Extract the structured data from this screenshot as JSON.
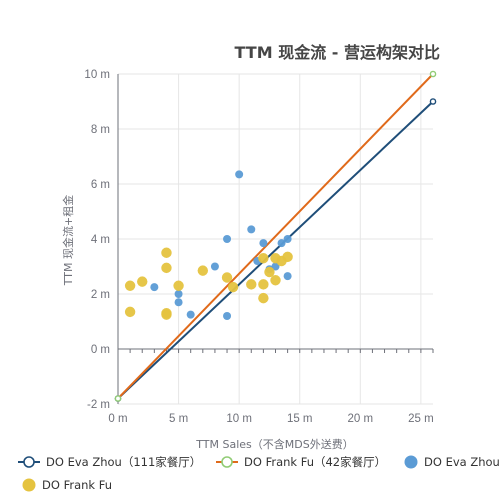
{
  "chart_data": {
    "type": "scatter",
    "title": "TTM 现金流 - 营运构架对比",
    "xlabel": "TTM Sales（不含MDS外送费）",
    "ylabel": "TTM 现金流+租金",
    "xlim": [
      0,
      26
    ],
    "ylim": [
      -2,
      10
    ],
    "x_ticks": [
      "0 m",
      "5 m",
      "10 m",
      "15 m",
      "20 m",
      "25 m"
    ],
    "y_ticks": [
      "-2 m",
      "0 m",
      "2 m",
      "4 m",
      "6 m",
      "8 m",
      "10 m"
    ],
    "x_tick_values": [
      0,
      5,
      10,
      15,
      20,
      25
    ],
    "y_tick_values": [
      -2,
      0,
      2,
      4,
      6,
      8,
      10
    ],
    "grid": true,
    "legend_position": "bottom",
    "series": [
      {
        "name": "DO Eva Zhou（111家餐厅）",
        "kind": "line",
        "color": "#1f4e79",
        "points": [
          [
            0,
            -1.8
          ],
          [
            26,
            9.0
          ]
        ]
      },
      {
        "name": "DO Frank Fu（42家餐厅）",
        "kind": "line",
        "color": "#e06a1b",
        "marker_color": "#91cc75",
        "points": [
          [
            0,
            -1.8
          ],
          [
            26,
            10.0
          ]
        ]
      },
      {
        "name": "DO Eva Zhou",
        "kind": "scatter",
        "color": "#5b9bd5",
        "points": [
          [
            3,
            2.25
          ],
          [
            5,
            2.0
          ],
          [
            5,
            1.7
          ],
          [
            6,
            1.25
          ],
          [
            8,
            3.0
          ],
          [
            9,
            4.0
          ],
          [
            9,
            1.2
          ],
          [
            10,
            6.35
          ],
          [
            11,
            4.35
          ],
          [
            11.5,
            3.2
          ],
          [
            12,
            3.85
          ],
          [
            12.5,
            2.9
          ],
          [
            13,
            3.0
          ],
          [
            13.5,
            3.85
          ],
          [
            14,
            4.0
          ],
          [
            14,
            2.65
          ]
        ]
      },
      {
        "name": "DO Frank Fu",
        "kind": "scatter",
        "color": "#e5c33f",
        "points": [
          [
            1,
            2.3
          ],
          [
            1,
            1.35
          ],
          [
            2,
            2.45
          ],
          [
            4,
            3.5
          ],
          [
            4,
            2.95
          ],
          [
            4,
            1.3
          ],
          [
            4,
            1.25
          ],
          [
            5,
            2.3
          ],
          [
            7,
            2.85
          ],
          [
            9,
            2.6
          ],
          [
            9.5,
            2.25
          ],
          [
            11,
            2.35
          ],
          [
            12,
            2.35
          ],
          [
            12,
            1.85
          ],
          [
            12,
            3.3
          ],
          [
            12.5,
            2.8
          ],
          [
            13,
            2.5
          ],
          [
            13,
            3.3
          ],
          [
            13.5,
            3.2
          ],
          [
            14,
            3.35
          ]
        ]
      }
    ]
  }
}
